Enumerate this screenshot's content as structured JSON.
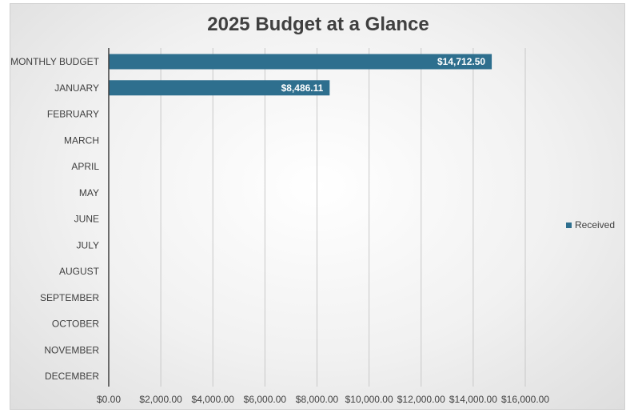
{
  "chart_data": {
    "type": "bar",
    "orientation": "horizontal",
    "title": "2025 Budget at a Glance",
    "categories": [
      "MONTHLY BUDGET",
      "JANUARY",
      "FEBRUARY",
      "MARCH",
      "APRIL",
      "MAY",
      "JUNE",
      "JULY",
      "AUGUST",
      "SEPTEMBER",
      "OCTOBER",
      "NOVEMBER",
      "DECEMBER"
    ],
    "series": [
      {
        "name": "Received",
        "color": "#2e6f8e",
        "values": [
          14712.5,
          8486.11,
          null,
          null,
          null,
          null,
          null,
          null,
          null,
          null,
          null,
          null,
          null
        ],
        "data_labels": [
          "$14,712.50",
          "$8,486.11",
          "",
          "",
          "",
          "",
          "",
          "",
          "",
          "",
          "",
          "",
          ""
        ]
      }
    ],
    "xlim": [
      0,
      16000
    ],
    "x_ticks": [
      0,
      2000,
      4000,
      6000,
      8000,
      10000,
      12000,
      14000,
      16000
    ],
    "x_tick_labels": [
      "$0.00",
      "$2,000.00",
      "$4,000.00",
      "$6,000.00",
      "$8,000.00",
      "$10,000.00",
      "$12,000.00",
      "$14,000.00",
      "$16,000.00"
    ],
    "grid": "vertical",
    "legend": "right",
    "xlabel": "",
    "ylabel": ""
  }
}
